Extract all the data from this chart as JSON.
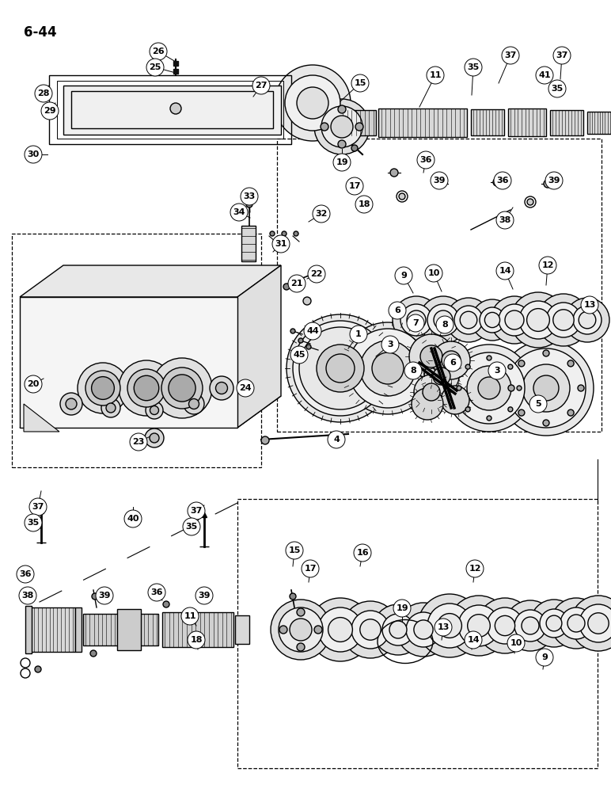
{
  "page_label": "6-44",
  "bg": "#ffffff",
  "lc": "#000000",
  "fig_w": 7.72,
  "fig_h": 10.0,
  "dpi": 100
}
